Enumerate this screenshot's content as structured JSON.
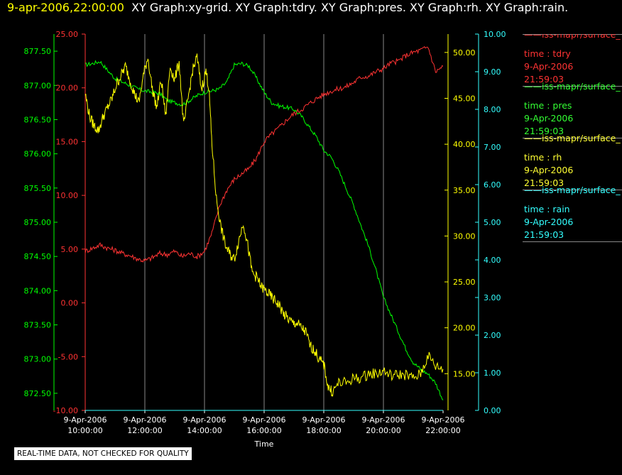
{
  "header": {
    "timestamp": "9-apr-2006,22:00:00",
    "graphs": "XY Graph:xy-grid.  XY Graph:tdry.  XY Graph:pres.  XY Graph:rh.  XY Graph:rain."
  },
  "footer": {
    "notice": "REAL-TIME DATA, NOT CHECKED FOR QUALITY"
  },
  "legend": [
    {
      "source": "iss-mapr/surface_",
      "var": "time : tdry",
      "date": "9-Apr-2006",
      "time": "21:59:03",
      "color": "#ff3333"
    },
    {
      "source": "iss-mapr/surface_",
      "var": "time : pres",
      "date": "9-Apr-2006",
      "time": "21:59:03",
      "color": "#33ff33"
    },
    {
      "source": "iss-mapr/surface_",
      "var": "time : rh",
      "date": "9-Apr-2006",
      "time": "21:59:03",
      "color": "#ffff33"
    },
    {
      "source": "iss-mapr/surface_",
      "var": "time : rain",
      "date": "9-Apr-2006",
      "time": "21:59:03",
      "color": "#33ffff"
    }
  ],
  "chart_data": {
    "type": "line",
    "xlabel": "Time",
    "xlim": [
      10,
      22
    ],
    "x_ticks": [
      {
        "t": 10,
        "date": "9-Apr-2006",
        "time": "10:00:00"
      },
      {
        "t": 12,
        "date": "9-Apr-2006",
        "time": "12:00:00"
      },
      {
        "t": 14,
        "date": "9-Apr-2006",
        "time": "14:00:00"
      },
      {
        "t": 16,
        "date": "9-Apr-2006",
        "time": "16:00:00"
      },
      {
        "t": 18,
        "date": "9-Apr-2006",
        "time": "18:00:00"
      },
      {
        "t": 20,
        "date": "9-Apr-2006",
        "time": "20:00:00"
      },
      {
        "t": 22,
        "date": "9-Apr-2006",
        "time": "22:00:00"
      }
    ],
    "grid": "vertical",
    "axes": {
      "pres": {
        "color": "#00ff00",
        "ylim": [
          872.25,
          877.75
        ],
        "ticks": [
          "872.50",
          "873.00",
          "873.50",
          "874.00",
          "874.50",
          "875.00",
          "875.50",
          "876.00",
          "876.50",
          "877.00",
          "877.50"
        ]
      },
      "tdry": {
        "color": "#ff3333",
        "ylim": [
          -10,
          25
        ],
        "ticks": [
          "-10.00",
          "-5.00",
          "0.00",
          "5.00",
          "10.00",
          "15.00",
          "20.00",
          "25.00"
        ]
      },
      "rh": {
        "color": "#ffff00",
        "ylim": [
          11,
          52
        ],
        "ticks": [
          "15.00",
          "20.00",
          "25.00",
          "30.00",
          "35.00",
          "40.00",
          "45.00",
          "50.00"
        ]
      },
      "rain": {
        "color": "#33ffff",
        "ylim": [
          0,
          10
        ],
        "ticks": [
          "0.00",
          "1.00",
          "2.00",
          "3.00",
          "4.00",
          "5.00",
          "6.00",
          "7.00",
          "8.00",
          "9.00",
          "10.00"
        ]
      }
    },
    "series": [
      {
        "name": "time : pres",
        "axis": "pres",
        "color": "#00ff00",
        "x": [
          10,
          10.25,
          10.5,
          10.75,
          11,
          11.25,
          11.5,
          11.75,
          12,
          12.25,
          12.5,
          12.75,
          13,
          13.25,
          13.5,
          13.75,
          14,
          14.25,
          14.5,
          14.75,
          15,
          15.25,
          15.5,
          15.75,
          16,
          16.25,
          16.5,
          16.75,
          17,
          17.25,
          17.5,
          17.75,
          18,
          18.25,
          18.5,
          18.75,
          19,
          19.25,
          19.5,
          19.75,
          20,
          20.25,
          20.5,
          20.75,
          21,
          21.25,
          21.5,
          21.75,
          22
        ],
        "y": [
          877.3,
          877.32,
          877.35,
          877.22,
          877.1,
          877.05,
          877.0,
          876.95,
          876.92,
          876.9,
          876.88,
          876.78,
          876.75,
          876.72,
          876.78,
          876.85,
          876.9,
          876.92,
          876.95,
          877.05,
          877.3,
          877.32,
          877.28,
          877.1,
          876.9,
          876.75,
          876.7,
          876.68,
          876.65,
          876.55,
          876.4,
          876.25,
          876.05,
          875.95,
          875.75,
          875.5,
          875.25,
          874.95,
          874.65,
          874.3,
          873.9,
          873.65,
          873.4,
          873.15,
          872.95,
          872.85,
          872.78,
          872.65,
          872.4
        ],
        "noise": 0.03
      },
      {
        "name": "time : tdry",
        "axis": "tdry",
        "color": "#ff3333",
        "x": [
          10,
          10.25,
          10.5,
          10.75,
          11,
          11.25,
          11.5,
          11.75,
          12,
          12.25,
          12.5,
          12.75,
          13,
          13.25,
          13.5,
          13.75,
          14,
          14.25,
          14.5,
          14.75,
          15,
          15.25,
          15.5,
          15.75,
          16,
          16.25,
          16.5,
          16.75,
          17,
          17.25,
          17.5,
          17.75,
          18,
          18.25,
          18.5,
          18.75,
          19,
          19.25,
          19.5,
          19.75,
          20,
          20.25,
          20.5,
          20.75,
          21,
          21.25,
          21.5,
          21.75,
          22
        ],
        "y": [
          4.8,
          5.1,
          5.4,
          5.1,
          4.9,
          4.6,
          4.4,
          4.1,
          3.9,
          4.2,
          4.6,
          4.5,
          4.8,
          4.3,
          4.6,
          4.3,
          4.8,
          6.5,
          9.0,
          10.5,
          11.5,
          12.0,
          12.5,
          13.5,
          15.0,
          15.7,
          16.3,
          17.0,
          17.6,
          18.0,
          18.5,
          19.0,
          19.4,
          19.7,
          19.9,
          20.1,
          20.5,
          21.0,
          21.1,
          21.5,
          21.8,
          22.3,
          22.5,
          23.0,
          23.3,
          23.5,
          23.8,
          21.5,
          22.0
        ],
        "noise": 0.25
      },
      {
        "name": "time : rh",
        "axis": "rh",
        "color": "#ffff00",
        "x": [
          10,
          10.15,
          10.3,
          10.45,
          10.6,
          10.75,
          10.9,
          11.05,
          11.2,
          11.35,
          11.5,
          11.65,
          11.8,
          11.95,
          12.1,
          12.25,
          12.4,
          12.55,
          12.7,
          12.85,
          13,
          13.15,
          13.3,
          13.45,
          13.6,
          13.75,
          13.9,
          14.05,
          14.15,
          14.25,
          14.4,
          14.55,
          14.7,
          14.85,
          15,
          15.15,
          15.3,
          15.45,
          15.6,
          15.75,
          15.9,
          16.05,
          16.2,
          16.35,
          16.5,
          16.65,
          16.8,
          16.95,
          17.1,
          17.25,
          17.4,
          17.55,
          17.7,
          17.85,
          18,
          18.15,
          18.3,
          18.5,
          18.75,
          19,
          19.25,
          19.5,
          19.75,
          20,
          20.25,
          20.5,
          20.75,
          21,
          21.25,
          21.5,
          21.75,
          22
        ],
        "y": [
          45.5,
          43.0,
          42.0,
          41.5,
          43.0,
          44.0,
          45.0,
          46.5,
          47.5,
          48.5,
          47.0,
          45.5,
          44.5,
          47.5,
          49.5,
          46.0,
          44.0,
          47.0,
          43.0,
          48.5,
          47.0,
          49.0,
          42.0,
          45.0,
          48.0,
          49.5,
          46.0,
          48.0,
          46.0,
          40.0,
          34.0,
          31.0,
          29.0,
          28.0,
          27.5,
          29.5,
          31.5,
          29.0,
          26.0,
          25.5,
          24.5,
          24.0,
          23.5,
          23.0,
          22.5,
          21.5,
          21.0,
          20.5,
          20.5,
          20.0,
          19.5,
          18.0,
          17.5,
          16.5,
          16.0,
          13.5,
          13.0,
          14.0,
          14.0,
          14.5,
          14.5,
          15.0,
          15.0,
          15.3,
          14.8,
          14.9,
          14.9,
          14.5,
          15.0,
          17.0,
          15.8,
          15.5
        ],
        "noise": 0.6
      },
      {
        "name": "time : rain",
        "axis": "rain",
        "color": "#33ffff",
        "x": [
          10,
          22
        ],
        "y": [
          0,
          0
        ],
        "noise": 0
      }
    ]
  }
}
